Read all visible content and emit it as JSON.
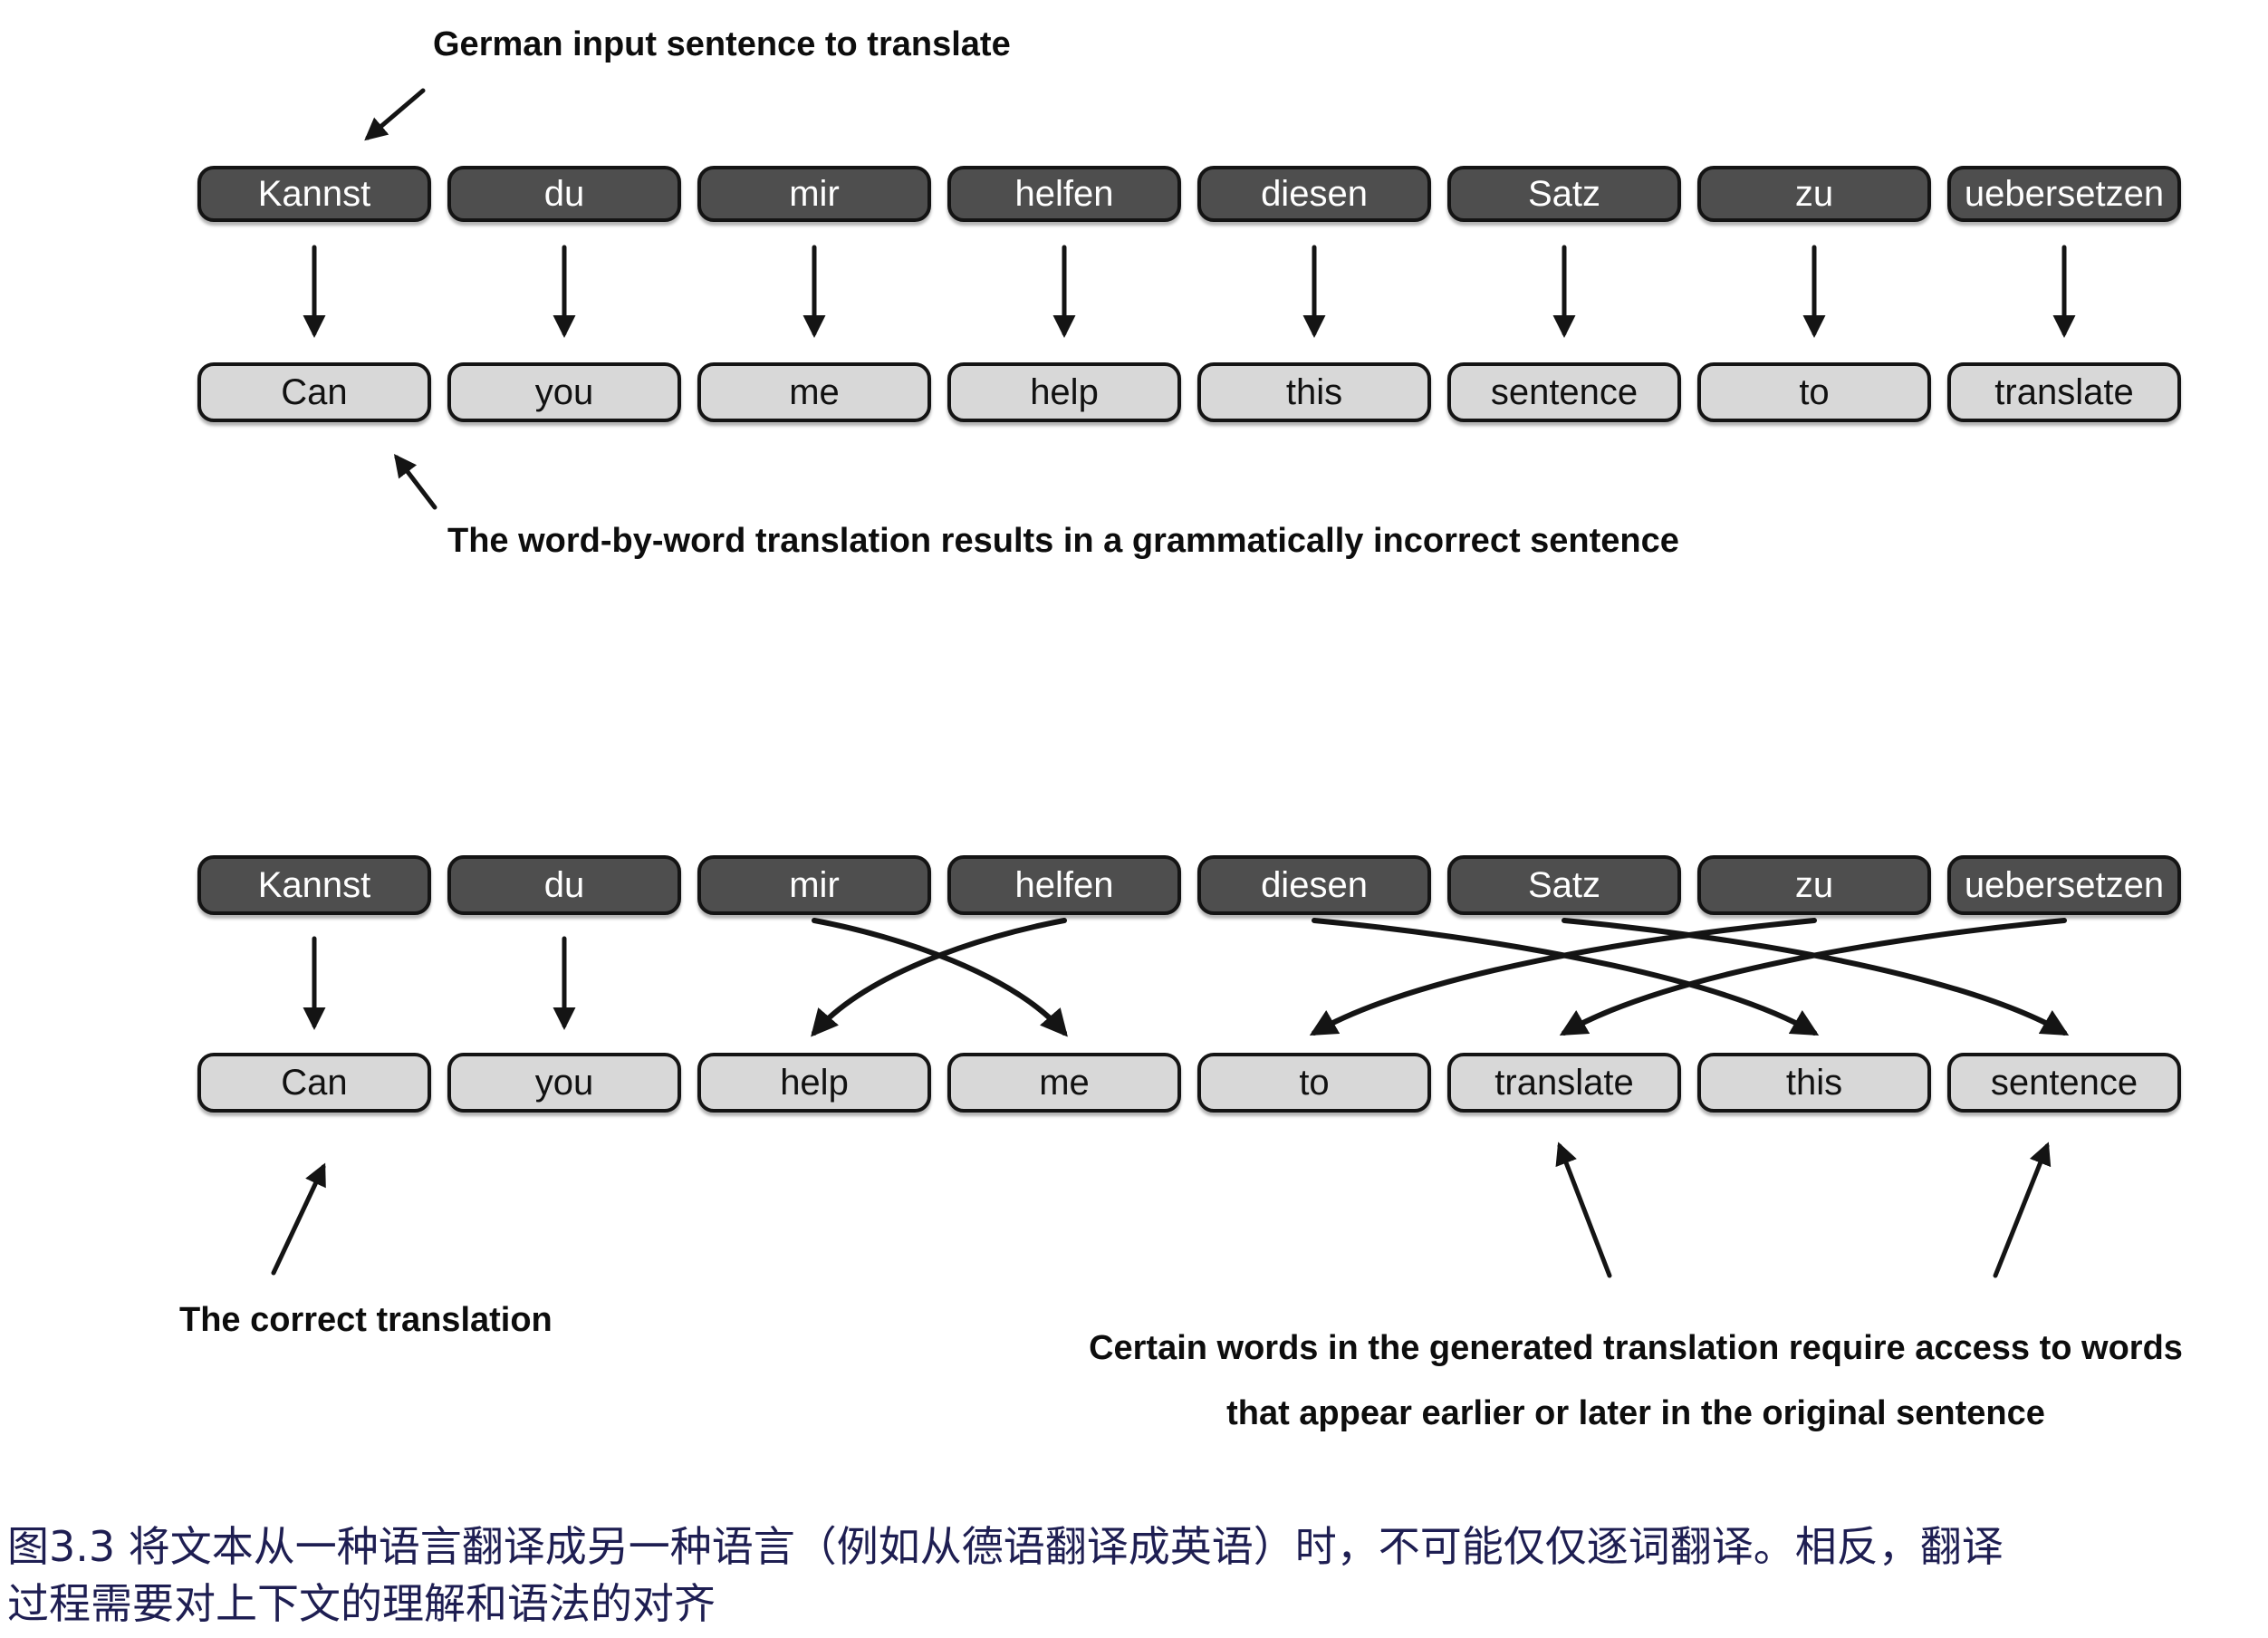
{
  "figure": {
    "top": {
      "annotation_input": "German input sentence to translate",
      "annotation_wordbyword": "The word-by-word translation results in a grammatically incorrect sentence",
      "german_words": [
        "Kannst",
        "du",
        "mir",
        "helfen",
        "diesen",
        "Satz",
        "zu",
        "uebersetzen"
      ],
      "english_words": [
        "Can",
        "you",
        "me",
        "help",
        "this",
        "sentence",
        "to",
        "translate"
      ],
      "alignments": [
        [
          1,
          1
        ],
        [
          2,
          2
        ],
        [
          3,
          3
        ],
        [
          4,
          4
        ],
        [
          5,
          5
        ],
        [
          6,
          6
        ],
        [
          7,
          7
        ],
        [
          8,
          8
        ]
      ]
    },
    "bottom": {
      "annotation_correct": "The correct translation",
      "annotation_context": [
        "Certain words in the generated translation require access to words",
        "that appear earlier or later in the original sentence"
      ],
      "german_words": [
        "Kannst",
        "du",
        "mir",
        "helfen",
        "diesen",
        "Satz",
        "zu",
        "uebersetzen"
      ],
      "english_words": [
        "Can",
        "you",
        "help",
        "me",
        "to",
        "translate",
        "this",
        "sentence"
      ],
      "alignments": [
        [
          1,
          1
        ],
        [
          2,
          2
        ],
        [
          3,
          4
        ],
        [
          4,
          3
        ],
        [
          5,
          7
        ],
        [
          6,
          8
        ],
        [
          7,
          5
        ],
        [
          8,
          6
        ]
      ]
    },
    "caption": {
      "line1": "图3.3 将文本从一种语言翻译成另一种语言（例如从德语翻译成英语）时，不可能仅仅逐词翻译。相反，翻译",
      "line2": "过程需要对上下文的理解和语法的对齐"
    },
    "colors": {
      "german_box_bg": "#4e4e4e",
      "german_box_text": "#ffffff",
      "english_box_bg": "#d8d8d8",
      "english_box_text": "#111111",
      "box_border": "#141414",
      "arrow": "#141414",
      "annotation_text": "#0d0d0d",
      "caption_text": "#1e1e52",
      "background": "#ffffff"
    }
  }
}
